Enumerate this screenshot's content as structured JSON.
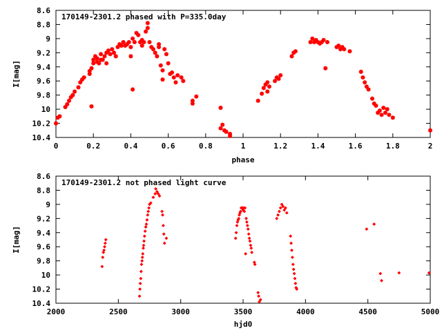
{
  "chart_data": [
    {
      "type": "scatter",
      "title": "170149-2301.2 phased with P=335.0day",
      "xlabel": "phase",
      "ylabel": "I[mag]",
      "xlim": [
        0,
        2
      ],
      "ylim": [
        10.4,
        8.6
      ],
      "y_inverted": true,
      "x_ticks": [
        0,
        0.2,
        0.4,
        0.6,
        0.8,
        1,
        1.2,
        1.4,
        1.6,
        1.8,
        2
      ],
      "x_tick_labels": [
        "0",
        "0.2",
        "0.4",
        "0.6",
        "0.8",
        "1",
        "1.2",
        "1.4",
        "1.6",
        "1.8",
        "2"
      ],
      "y_ticks": [
        8.6,
        8.8,
        9,
        9.2,
        9.4,
        9.6,
        9.8,
        10,
        10.2,
        10.4
      ],
      "y_tick_labels": [
        "8.6",
        "8.8",
        "9",
        "9.2",
        "9.4",
        "9.6",
        "9.8",
        "10",
        "10.2",
        "10.4"
      ],
      "marker_color": "#ff0000",
      "marker": "star",
      "points": [
        [
          0.0,
          10.2
        ],
        [
          0.01,
          10.12
        ],
        [
          0.02,
          10.1
        ],
        [
          0.05,
          9.97
        ],
        [
          0.06,
          9.93
        ],
        [
          0.07,
          9.88
        ],
        [
          0.08,
          9.83
        ],
        [
          0.09,
          9.8
        ],
        [
          0.1,
          9.75
        ],
        [
          0.12,
          9.69
        ],
        [
          0.13,
          9.62
        ],
        [
          0.14,
          9.58
        ],
        [
          0.15,
          9.55
        ],
        [
          0.18,
          9.5
        ],
        [
          0.18,
          9.46
        ],
        [
          0.19,
          9.42
        ],
        [
          0.19,
          9.96
        ],
        [
          0.2,
          9.35
        ],
        [
          0.2,
          9.3
        ],
        [
          0.21,
          9.25
        ],
        [
          0.22,
          9.33
        ],
        [
          0.22,
          9.28
        ],
        [
          0.23,
          9.35
        ],
        [
          0.24,
          9.3
        ],
        [
          0.24,
          9.22
        ],
        [
          0.25,
          9.3
        ],
        [
          0.26,
          9.25
        ],
        [
          0.27,
          9.35
        ],
        [
          0.27,
          9.2
        ],
        [
          0.28,
          9.17
        ],
        [
          0.29,
          9.22
        ],
        [
          0.3,
          9.15
        ],
        [
          0.31,
          9.2
        ],
        [
          0.32,
          9.25
        ],
        [
          0.33,
          9.12
        ],
        [
          0.34,
          9.08
        ],
        [
          0.35,
          9.1
        ],
        [
          0.36,
          9.05
        ],
        [
          0.37,
          9.1
        ],
        [
          0.38,
          9.08
        ],
        [
          0.39,
          9.05
        ],
        [
          0.4,
          9.12
        ],
        [
          0.4,
          9.25
        ],
        [
          0.41,
          9.0
        ],
        [
          0.41,
          9.72
        ],
        [
          0.42,
          9.05
        ],
        [
          0.43,
          8.92
        ],
        [
          0.44,
          8.95
        ],
        [
          0.45,
          9.05
        ],
        [
          0.46,
          9.1
        ],
        [
          0.46,
          9.02
        ],
        [
          0.47,
          9.05
        ],
        [
          0.48,
          8.9
        ],
        [
          0.49,
          8.85
        ],
        [
          0.49,
          8.78
        ],
        [
          0.5,
          9.05
        ],
        [
          0.51,
          9.12
        ],
        [
          0.52,
          9.15
        ],
        [
          0.53,
          9.2
        ],
        [
          0.54,
          9.25
        ],
        [
          0.55,
          9.12
        ],
        [
          0.55,
          9.08
        ],
        [
          0.56,
          9.38
        ],
        [
          0.57,
          9.45
        ],
        [
          0.57,
          9.58
        ],
        [
          0.58,
          9.15
        ],
        [
          0.59,
          9.22
        ],
        [
          0.6,
          9.35
        ],
        [
          0.61,
          9.5
        ],
        [
          0.62,
          9.48
        ],
        [
          0.63,
          9.55
        ],
        [
          0.64,
          9.62
        ],
        [
          0.65,
          9.52
        ],
        [
          0.67,
          9.55
        ],
        [
          0.68,
          9.6
        ],
        [
          0.73,
          9.88
        ],
        [
          0.73,
          9.92
        ],
        [
          0.75,
          9.82
        ],
        [
          0.88,
          10.27
        ],
        [
          0.88,
          9.98
        ],
        [
          0.89,
          10.22
        ],
        [
          0.9,
          10.3
        ],
        [
          0.91,
          10.32
        ],
        [
          0.93,
          10.35
        ],
        [
          0.93,
          10.38
        ],
        [
          1.08,
          9.88
        ],
        [
          1.1,
          9.78
        ],
        [
          1.11,
          9.7
        ],
        [
          1.12,
          9.65
        ],
        [
          1.13,
          9.62
        ],
        [
          1.13,
          9.75
        ],
        [
          1.14,
          9.68
        ],
        [
          1.17,
          9.6
        ],
        [
          1.18,
          9.55
        ],
        [
          1.19,
          9.57
        ],
        [
          1.2,
          9.52
        ],
        [
          1.26,
          9.25
        ],
        [
          1.27,
          9.2
        ],
        [
          1.28,
          9.18
        ],
        [
          1.36,
          9.05
        ],
        [
          1.37,
          9.0
        ],
        [
          1.38,
          9.05
        ],
        [
          1.39,
          9.02
        ],
        [
          1.4,
          9.05
        ],
        [
          1.41,
          9.07
        ],
        [
          1.42,
          9.05
        ],
        [
          1.43,
          9.02
        ],
        [
          1.44,
          9.42
        ],
        [
          1.45,
          9.05
        ],
        [
          1.5,
          9.12
        ],
        [
          1.51,
          9.1
        ],
        [
          1.52,
          9.15
        ],
        [
          1.53,
          9.12
        ],
        [
          1.54,
          9.15
        ],
        [
          1.57,
          9.18
        ],
        [
          1.63,
          9.47
        ],
        [
          1.64,
          9.55
        ],
        [
          1.65,
          9.62
        ],
        [
          1.66,
          9.68
        ],
        [
          1.67,
          9.72
        ],
        [
          1.69,
          9.85
        ],
        [
          1.7,
          9.92
        ],
        [
          1.71,
          9.95
        ],
        [
          1.72,
          10.05
        ],
        [
          1.73,
          10.02
        ],
        [
          1.74,
          10.08
        ],
        [
          1.75,
          9.98
        ],
        [
          1.76,
          10.05
        ],
        [
          1.77,
          10.0
        ],
        [
          1.78,
          10.08
        ],
        [
          1.8,
          10.12
        ],
        [
          2.0,
          10.3
        ]
      ]
    },
    {
      "type": "scatter",
      "title": "170149-2301.2 not phased light curve",
      "xlabel": "hjd0",
      "ylabel": "I[mag]",
      "xlim": [
        2000,
        5000
      ],
      "ylim": [
        10.4,
        8.6
      ],
      "y_inverted": true,
      "x_ticks": [
        2000,
        2500,
        3000,
        3500,
        4000,
        4500,
        5000
      ],
      "x_tick_labels": [
        "2000",
        "2500",
        "3000",
        "3500",
        "4000",
        "4500",
        "5000"
      ],
      "y_ticks": [
        8.6,
        8.8,
        9,
        9.2,
        9.4,
        9.6,
        9.8,
        10,
        10.2,
        10.4
      ],
      "y_tick_labels": [
        "8.6",
        "8.8",
        "9",
        "9.2",
        "9.4",
        "9.6",
        "9.8",
        "10",
        "10.2",
        "10.4"
      ],
      "marker_color": "#ff0000",
      "marker": "diamond",
      "points": [
        [
          2370,
          9.88
        ],
        [
          2375,
          9.75
        ],
        [
          2380,
          9.68
        ],
        [
          2385,
          9.65
        ],
        [
          2390,
          9.6
        ],
        [
          2395,
          9.55
        ],
        [
          2400,
          9.5
        ],
        [
          2670,
          10.3
        ],
        [
          2673,
          10.2
        ],
        [
          2676,
          10.12
        ],
        [
          2680,
          10.05
        ],
        [
          2683,
          9.95
        ],
        [
          2686,
          9.85
        ],
        [
          2690,
          9.8
        ],
        [
          2693,
          9.75
        ],
        [
          2696,
          9.7
        ],
        [
          2700,
          9.62
        ],
        [
          2703,
          9.58
        ],
        [
          2706,
          9.52
        ],
        [
          2710,
          9.45
        ],
        [
          2715,
          9.38
        ],
        [
          2720,
          9.32
        ],
        [
          2725,
          9.28
        ],
        [
          2730,
          9.22
        ],
        [
          2735,
          9.15
        ],
        [
          2740,
          9.1
        ],
        [
          2745,
          9.05
        ],
        [
          2750,
          9.0
        ],
        [
          2760,
          8.98
        ],
        [
          2780,
          8.9
        ],
        [
          2795,
          8.85
        ],
        [
          2800,
          8.78
        ],
        [
          2810,
          8.82
        ],
        [
          2820,
          8.85
        ],
        [
          2830,
          8.88
        ],
        [
          2850,
          9.1
        ],
        [
          2855,
          9.15
        ],
        [
          2860,
          9.3
        ],
        [
          2865,
          9.42
        ],
        [
          2870,
          9.55
        ],
        [
          2885,
          9.48
        ],
        [
          3440,
          9.48
        ],
        [
          3445,
          9.4
        ],
        [
          3450,
          9.3
        ],
        [
          3455,
          9.25
        ],
        [
          3460,
          9.22
        ],
        [
          3465,
          9.2
        ],
        [
          3470,
          9.15
        ],
        [
          3475,
          9.12
        ],
        [
          3480,
          9.1
        ],
        [
          3485,
          9.05
        ],
        [
          3490,
          9.05
        ],
        [
          3495,
          9.05
        ],
        [
          3500,
          9.08
        ],
        [
          3505,
          9.05
        ],
        [
          3510,
          9.1
        ],
        [
          3515,
          9.05
        ],
        [
          3520,
          9.7
        ],
        [
          3525,
          9.2
        ],
        [
          3530,
          9.25
        ],
        [
          3535,
          9.3
        ],
        [
          3540,
          9.35
        ],
        [
          3545,
          9.42
        ],
        [
          3550,
          9.48
        ],
        [
          3555,
          9.52
        ],
        [
          3560,
          9.58
        ],
        [
          3565,
          9.62
        ],
        [
          3570,
          9.68
        ],
        [
          3590,
          9.82
        ],
        [
          3595,
          9.85
        ],
        [
          3620,
          10.25
        ],
        [
          3625,
          10.3
        ],
        [
          3630,
          10.38
        ],
        [
          3640,
          10.35
        ],
        [
          3770,
          9.2
        ],
        [
          3780,
          9.15
        ],
        [
          3790,
          9.1
        ],
        [
          3800,
          9.05
        ],
        [
          3810,
          9.0
        ],
        [
          3820,
          9.03
        ],
        [
          3830,
          9.08
        ],
        [
          3840,
          9.05
        ],
        [
          3850,
          9.12
        ],
        [
          3880,
          9.45
        ],
        [
          3885,
          9.55
        ],
        [
          3890,
          9.65
        ],
        [
          3895,
          9.75
        ],
        [
          3900,
          9.85
        ],
        [
          3905,
          9.92
        ],
        [
          3910,
          9.98
        ],
        [
          3915,
          10.05
        ],
        [
          3920,
          10.12
        ],
        [
          3925,
          10.18
        ],
        [
          3930,
          10.2
        ],
        [
          4490,
          9.35
        ],
        [
          4550,
          9.28
        ],
        [
          4600,
          9.98
        ],
        [
          4610,
          10.08
        ],
        [
          4750,
          9.97
        ],
        [
          4990,
          9.97
        ]
      ]
    }
  ]
}
